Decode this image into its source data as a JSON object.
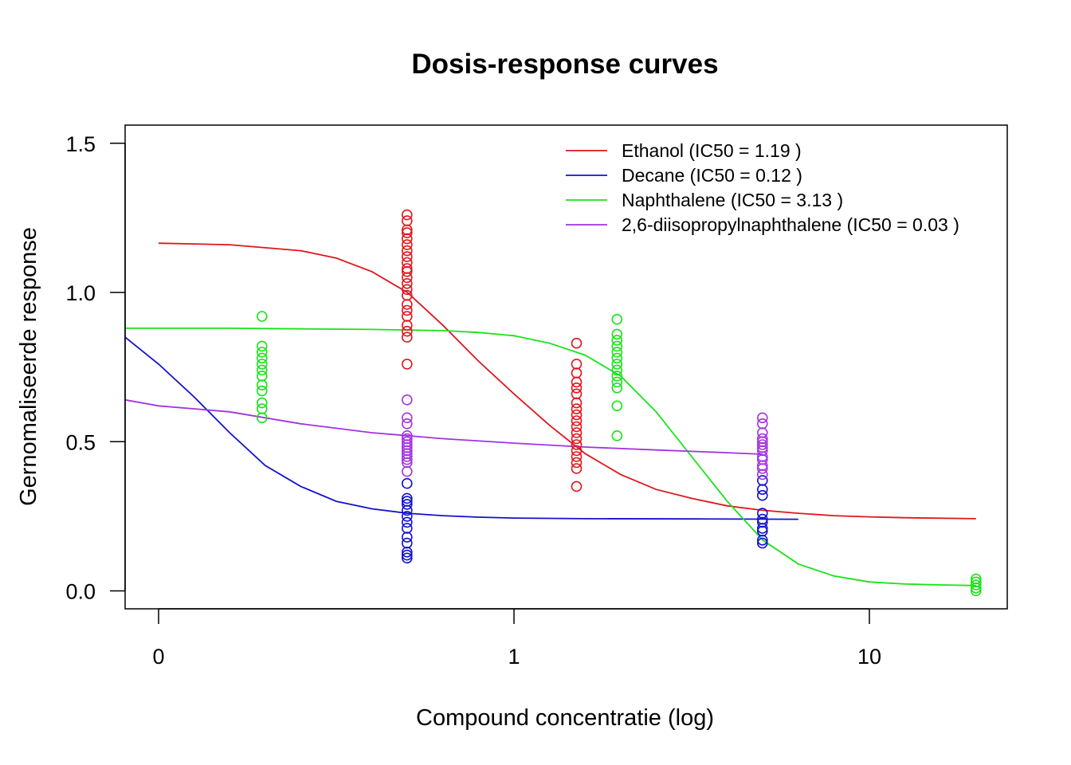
{
  "chart_data": {
    "type": "scatter",
    "title": "Dosis-response curves",
    "xlabel": "Compound concentratie (log)",
    "ylabel": "Gernomaliseerde response",
    "x_scale": "log",
    "x_ticks": [
      {
        "label": "0",
        "pos": 0
      },
      {
        "label": "1",
        "pos": 1
      },
      {
        "label": "10",
        "pos": 2
      }
    ],
    "y_ticks": [
      {
        "label": "0.0",
        "value": 0.0
      },
      {
        "label": "0.5",
        "value": 0.5
      },
      {
        "label": "1.0",
        "value": 1.0
      },
      {
        "label": "1.5",
        "value": 1.5
      }
    ],
    "xlim": [
      -0.094,
      2.387
    ],
    "ylim": [
      -0.06,
      1.56
    ],
    "grid": false,
    "legend_position": "top-right",
    "legend": [
      {
        "label": "Ethanol (IC50 = 1.19 )",
        "color": "#E0161D"
      },
      {
        "label": "Decane (IC50 = 0.12 )",
        "color": "#1212CC"
      },
      {
        "label": "Naphthalene (IC50 = 3.13 )",
        "color": "#19E319"
      },
      {
        "label": "2,6-diisopropylnaphthalene (IC50 = 0.03 )",
        "color": "#A233E0"
      }
    ],
    "series": [
      {
        "color": "#E0161D",
        "curve": [
          [
            0,
            1.165
          ],
          [
            0.2,
            1.16
          ],
          [
            0.4,
            1.14
          ],
          [
            0.5,
            1.115
          ],
          [
            0.6,
            1.07
          ],
          [
            0.7,
            1.0
          ],
          [
            0.8,
            0.89
          ],
          [
            0.9,
            0.77
          ],
          [
            1.0,
            0.66
          ],
          [
            1.1,
            0.555
          ],
          [
            1.2,
            0.46
          ],
          [
            1.3,
            0.39
          ],
          [
            1.4,
            0.34
          ],
          [
            1.5,
            0.31
          ],
          [
            1.6,
            0.285
          ],
          [
            1.7,
            0.27
          ],
          [
            1.8,
            0.26
          ],
          [
            1.9,
            0.252
          ],
          [
            2.0,
            0.248
          ],
          [
            2.1,
            0.245
          ],
          [
            2.3,
            0.242
          ]
        ],
        "points": [
          {
            "x": 0.699,
            "y": [
              1.26,
              1.24,
              1.21,
              1.2,
              1.18,
              1.16,
              1.14,
              1.12,
              1.1,
              1.08,
              1.07,
              1.05,
              1.03,
              1.01,
              0.99,
              0.96,
              0.94,
              0.92,
              0.89,
              0.87,
              0.85,
              0.76
            ]
          },
          {
            "x": 1.176,
            "y": [
              0.83,
              0.76,
              0.73,
              0.7,
              0.68,
              0.66,
              0.63,
              0.61,
              0.59,
              0.57,
              0.55,
              0.53,
              0.51,
              0.49,
              0.47,
              0.45,
              0.43,
              0.41,
              0.35
            ]
          }
        ]
      },
      {
        "color": "#1212CC",
        "curve": [
          [
            -0.094,
            0.85
          ],
          [
            0,
            0.76
          ],
          [
            0.1,
            0.65
          ],
          [
            0.2,
            0.53
          ],
          [
            0.3,
            0.42
          ],
          [
            0.4,
            0.35
          ],
          [
            0.5,
            0.3
          ],
          [
            0.6,
            0.275
          ],
          [
            0.7,
            0.26
          ],
          [
            0.8,
            0.252
          ],
          [
            0.9,
            0.247
          ],
          [
            1.0,
            0.244
          ],
          [
            1.2,
            0.242
          ],
          [
            1.5,
            0.241
          ],
          [
            1.8,
            0.24
          ]
        ],
        "points": [
          {
            "x": 0.699,
            "y": [
              0.36,
              0.31,
              0.3,
              0.29,
              0.27,
              0.25,
              0.23,
              0.21,
              0.18,
              0.16,
              0.13,
              0.12,
              0.11
            ]
          },
          {
            "x": 1.699,
            "y": [
              0.37,
              0.34,
              0.32,
              0.26,
              0.24,
              0.23,
              0.21,
              0.2,
              0.17,
              0.16
            ]
          }
        ]
      },
      {
        "color": "#19E319",
        "curve": [
          [
            -0.094,
            0.88
          ],
          [
            0.2,
            0.88
          ],
          [
            0.4,
            0.878
          ],
          [
            0.6,
            0.876
          ],
          [
            0.8,
            0.872
          ],
          [
            0.9,
            0.866
          ],
          [
            1.0,
            0.855
          ],
          [
            1.1,
            0.83
          ],
          [
            1.2,
            0.79
          ],
          [
            1.3,
            0.72
          ],
          [
            1.4,
            0.6
          ],
          [
            1.5,
            0.45
          ],
          [
            1.6,
            0.3
          ],
          [
            1.7,
            0.17
          ],
          [
            1.8,
            0.09
          ],
          [
            1.9,
            0.05
          ],
          [
            2.0,
            0.03
          ],
          [
            2.1,
            0.023
          ],
          [
            2.2,
            0.02
          ],
          [
            2.3,
            0.018
          ]
        ],
        "points": [
          {
            "x": 0.291,
            "y": [
              0.92,
              0.82,
              0.8,
              0.78,
              0.76,
              0.74,
              0.72,
              0.69,
              0.67,
              0.63,
              0.61,
              0.58
            ]
          },
          {
            "x": 1.29,
            "y": [
              0.91,
              0.86,
              0.84,
              0.82,
              0.8,
              0.78,
              0.76,
              0.74,
              0.72,
              0.7,
              0.68,
              0.62,
              0.52
            ]
          },
          {
            "x": 2.3,
            "y": [
              0.04,
              0.03,
              0.02,
              0.01,
              0.0
            ]
          }
        ]
      },
      {
        "color": "#A233E0",
        "curve": [
          [
            -0.094,
            0.64
          ],
          [
            0,
            0.62
          ],
          [
            0.2,
            0.6
          ],
          [
            0.4,
            0.56
          ],
          [
            0.6,
            0.53
          ],
          [
            0.8,
            0.51
          ],
          [
            1.0,
            0.495
          ],
          [
            1.2,
            0.482
          ],
          [
            1.4,
            0.472
          ],
          [
            1.6,
            0.463
          ],
          [
            1.699,
            0.458
          ]
        ],
        "points": [
          {
            "x": 0.699,
            "y": [
              0.64,
              0.58,
              0.56,
              0.52,
              0.51,
              0.5,
              0.49,
              0.48,
              0.47,
              0.46,
              0.45,
              0.44,
              0.43,
              0.4
            ]
          },
          {
            "x": 1.699,
            "y": [
              0.58,
              0.56,
              0.53,
              0.51,
              0.5,
              0.49,
              0.48,
              0.47,
              0.45,
              0.44,
              0.42,
              0.41,
              0.39
            ]
          }
        ]
      }
    ]
  }
}
